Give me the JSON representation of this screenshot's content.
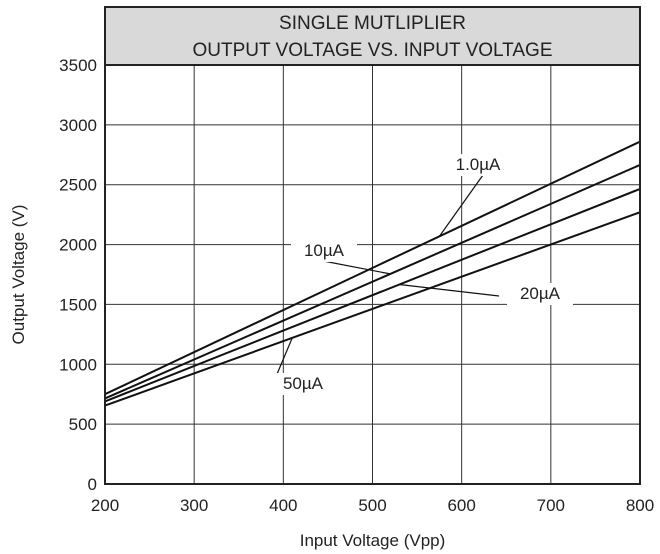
{
  "chart_data": {
    "type": "line",
    "title": "SINGLE MUTLIPLIER",
    "subtitle": "OUTPUT VOLTAGE VS. INPUT VOLTAGE",
    "xlabel": "Input Voltage (Vpp)",
    "ylabel": "Output Voltage (V)",
    "xlim": [
      200,
      800
    ],
    "ylim": [
      0,
      3500
    ],
    "x_ticks": [
      "200",
      "300",
      "400",
      "500",
      "600",
      "700",
      "800"
    ],
    "y_ticks": [
      "0",
      "500",
      "1000",
      "1500",
      "2000",
      "2500",
      "3000",
      "3500"
    ],
    "grid": true,
    "series": [
      {
        "name": "1.0µA",
        "x": [
          200,
          800
        ],
        "y": [
          750,
          2860
        ]
      },
      {
        "name": "10µA",
        "x": [
          200,
          800
        ],
        "y": [
          715,
          2665
        ]
      },
      {
        "name": "20µA",
        "x": [
          200,
          800
        ],
        "y": [
          690,
          2465
        ]
      },
      {
        "name": "50µA",
        "x": [
          200,
          800
        ],
        "y": [
          655,
          2270
        ]
      }
    ]
  }
}
